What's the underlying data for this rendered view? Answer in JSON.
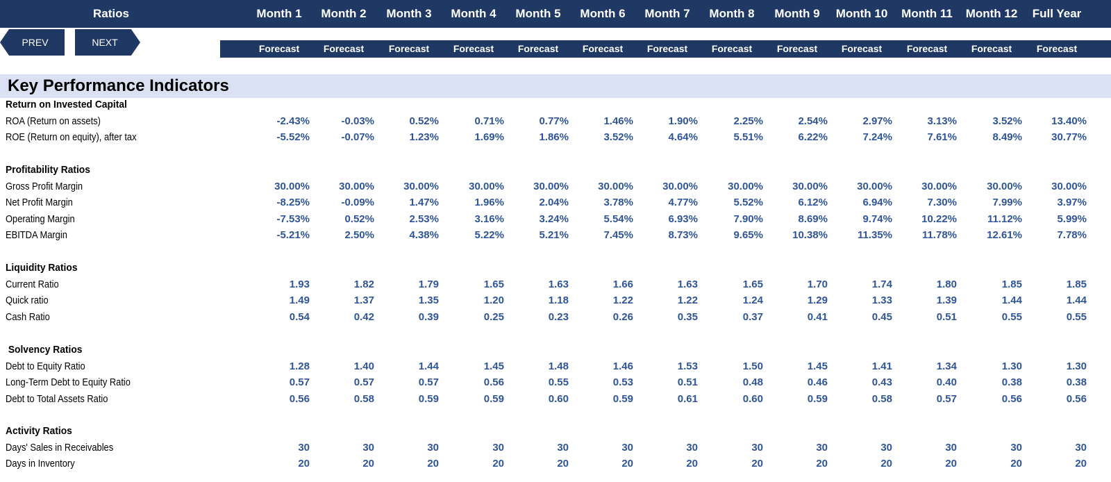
{
  "header": {
    "title": "Ratios",
    "columns": [
      "Month 1",
      "Month 2",
      "Month 3",
      "Month 4",
      "Month 5",
      "Month 6",
      "Month 7",
      "Month 8",
      "Month 9",
      "Month 10",
      "Month 11",
      "Month 12",
      "Full Year"
    ],
    "subtitles": [
      "Forecast",
      "Forecast",
      "Forecast",
      "Forecast",
      "Forecast",
      "Forecast",
      "Forecast",
      "Forecast",
      "Forecast",
      "Forecast",
      "Forecast",
      "Forecast",
      "Forecast"
    ]
  },
  "nav": {
    "prev_label": "PREV",
    "next_label": "NEXT"
  },
  "kpi_title": "Key Performance Indicators",
  "sections": [
    {
      "title": "Return on Invested Capital",
      "rows": [
        {
          "label": "ROA (Return on assets)",
          "values": [
            "-2.43%",
            "-0.03%",
            "0.52%",
            "0.71%",
            "0.77%",
            "1.46%",
            "1.90%",
            "2.25%",
            "2.54%",
            "2.97%",
            "3.13%",
            "3.52%",
            "13.40%"
          ]
        },
        {
          "label": "ROE (Return on equity), after tax",
          "values": [
            "-5.52%",
            "-0.07%",
            "1.23%",
            "1.69%",
            "1.86%",
            "3.52%",
            "4.64%",
            "5.51%",
            "6.22%",
            "7.24%",
            "7.61%",
            "8.49%",
            "30.77%"
          ]
        }
      ]
    },
    {
      "title": "Profitability Ratios",
      "rows": [
        {
          "label": "Gross Profit Margin",
          "values": [
            "30.00%",
            "30.00%",
            "30.00%",
            "30.00%",
            "30.00%",
            "30.00%",
            "30.00%",
            "30.00%",
            "30.00%",
            "30.00%",
            "30.00%",
            "30.00%",
            "30.00%"
          ]
        },
        {
          "label": "Net Profit Margin",
          "values": [
            "-8.25%",
            "-0.09%",
            "1.47%",
            "1.96%",
            "2.04%",
            "3.78%",
            "4.77%",
            "5.52%",
            "6.12%",
            "6.94%",
            "7.30%",
            "7.99%",
            "3.97%"
          ]
        },
        {
          "label": "Operating Margin",
          "values": [
            "-7.53%",
            "0.52%",
            "2.53%",
            "3.16%",
            "3.24%",
            "5.54%",
            "6.93%",
            "7.90%",
            "8.69%",
            "9.74%",
            "10.22%",
            "11.12%",
            "5.99%"
          ]
        },
        {
          "label": "EBITDA Margin",
          "values": [
            "-5.21%",
            "2.50%",
            "4.38%",
            "5.22%",
            "5.21%",
            "7.45%",
            "8.73%",
            "9.65%",
            "10.38%",
            "11.35%",
            "11.78%",
            "12.61%",
            "7.78%"
          ]
        }
      ]
    },
    {
      "title": "Liquidity Ratios",
      "rows": [
        {
          "label": "Current Ratio",
          "values": [
            "1.93",
            "1.82",
            "1.79",
            "1.65",
            "1.63",
            "1.66",
            "1.63",
            "1.65",
            "1.70",
            "1.74",
            "1.80",
            "1.85",
            "1.85"
          ]
        },
        {
          "label": "Quick ratio",
          "values": [
            "1.49",
            "1.37",
            "1.35",
            "1.20",
            "1.18",
            "1.22",
            "1.22",
            "1.24",
            "1.29",
            "1.33",
            "1.39",
            "1.44",
            "1.44"
          ]
        },
        {
          "label": "Cash Ratio",
          "values": [
            "0.54",
            "0.42",
            "0.39",
            "0.25",
            "0.23",
            "0.26",
            "0.35",
            "0.37",
            "0.41",
            "0.45",
            "0.51",
            "0.55",
            "0.55"
          ]
        }
      ]
    },
    {
      "title": " Solvency Ratios",
      "rows": [
        {
          "label": "Debt to Equity Ratio",
          "values": [
            "1.28",
            "1.40",
            "1.44",
            "1.45",
            "1.48",
            "1.46",
            "1.53",
            "1.50",
            "1.45",
            "1.41",
            "1.34",
            "1.30",
            "1.30"
          ]
        },
        {
          "label": "Long-Term Debt to Equity Ratio",
          "values": [
            "0.57",
            "0.57",
            "0.57",
            "0.56",
            "0.55",
            "0.53",
            "0.51",
            "0.48",
            "0.46",
            "0.43",
            "0.40",
            "0.38",
            "0.38"
          ]
        },
        {
          "label": "Debt to Total Assets Ratio",
          "values": [
            "0.56",
            "0.58",
            "0.59",
            "0.59",
            "0.60",
            "0.59",
            "0.61",
            "0.60",
            "0.59",
            "0.58",
            "0.57",
            "0.56",
            "0.56"
          ]
        }
      ]
    },
    {
      "title": "Activity Ratios",
      "rows": [
        {
          "label": "Days' Sales in Receivables",
          "values": [
            "30",
            "30",
            "30",
            "30",
            "30",
            "30",
            "30",
            "30",
            "30",
            "30",
            "30",
            "30",
            "30"
          ]
        },
        {
          "label": "Days in Inventory",
          "values": [
            "20",
            "20",
            "20",
            "20",
            "20",
            "20",
            "20",
            "20",
            "20",
            "20",
            "20",
            "20",
            "20"
          ]
        }
      ]
    }
  ]
}
